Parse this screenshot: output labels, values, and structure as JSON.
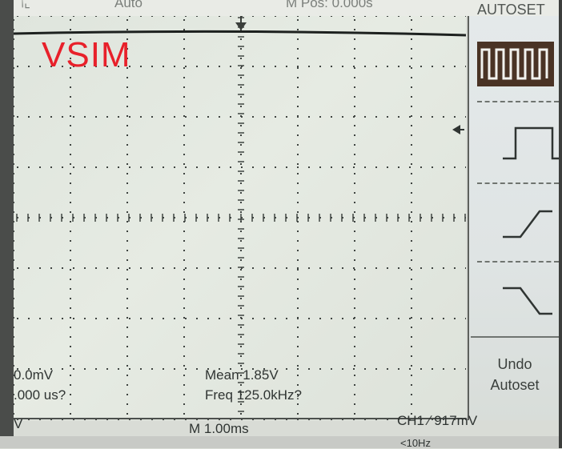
{
  "top_bar": {
    "trigger_mode": "Auto",
    "position": "M Pos: 0.000s"
  },
  "screen_label": "VSIM",
  "readouts": {
    "left_value": "0.0mV",
    "left_time": ".000 us?",
    "mean": "Mean 1.85V",
    "freq": "Freq 125.0kHz?",
    "left_bottom": "V",
    "timebase": "M 1.00ms",
    "trigger": "CH1 ∕ 917mV",
    "bottom_partial": "<10Hz"
  },
  "menu": {
    "title": "AUTOSET",
    "options": [
      {
        "icon": "multi-cycle-square-wave-icon",
        "selected": true
      },
      {
        "icon": "single-cycle-square-wave-icon",
        "selected": false
      },
      {
        "icon": "rising-edge-icon",
        "selected": false
      },
      {
        "icon": "falling-edge-icon",
        "selected": false
      }
    ],
    "undo_line1": "Undo",
    "undo_line2": "Autoset"
  },
  "colors": {
    "screen_bg": "#e2e7df",
    "grid": "#3f4441",
    "trace": "#1d211f",
    "label_red": "#e8202a",
    "selected_bg": "#4a3325"
  }
}
